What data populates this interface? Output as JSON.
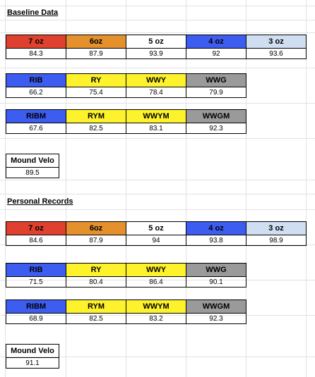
{
  "colors": {
    "red": "#e0412e",
    "orange": "#e3902d",
    "white": "#ffffff",
    "blue": "#3d5cf0",
    "light_blue": "#cfdef0",
    "yellow": "#fdf22b",
    "gray": "#9a9a9a",
    "grid": "#e2e2e2"
  },
  "baseline": {
    "title": "Baseline Data",
    "oz_headers": [
      "7 oz",
      "6oz",
      "5 oz",
      "4 oz",
      "3 oz"
    ],
    "oz_values": [
      "84.3",
      "87.9",
      "93.9",
      "92",
      "93.6"
    ],
    "ball_headers": [
      "RIB",
      "RY",
      "WWY",
      "WWG"
    ],
    "ball_values": [
      "66.2",
      "75.4",
      "78.4",
      "79.9"
    ],
    "ballm_headers": [
      "RIBM",
      "RYM",
      "WWYM",
      "WWGM"
    ],
    "ballm_values": [
      "67.6",
      "82.5",
      "83.1",
      "92.3"
    ],
    "mound_label": "Mound Velo",
    "mound_value": "89.5"
  },
  "records": {
    "title": "Personal Records",
    "oz_headers": [
      "7 oz",
      "6oz",
      "5 oz",
      "4 oz",
      "3 oz"
    ],
    "oz_values": [
      "84.6",
      "87.9",
      "94",
      "93.8",
      "98.9"
    ],
    "ball_headers": [
      "RIB",
      "RY",
      "WWY",
      "WWG"
    ],
    "ball_values": [
      "71.5",
      "80.4",
      "86.4",
      "90.1"
    ],
    "ballm_headers": [
      "RIBM",
      "RYM",
      "WWYM",
      "WWGM"
    ],
    "ballm_values": [
      "68.9",
      "82.5",
      "83.2",
      "92.3"
    ],
    "mound_label": "Mound Velo",
    "mound_value": "91.1"
  }
}
